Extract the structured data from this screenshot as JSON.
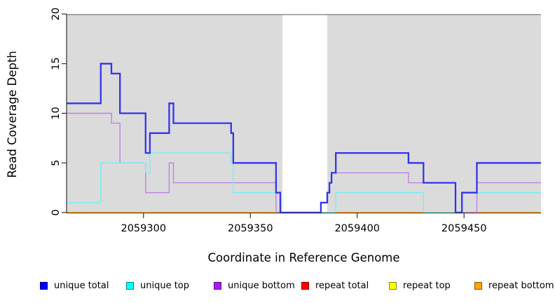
{
  "figure": {
    "background": "#ffffff",
    "panel_background": "#dbdbdb",
    "mask_fill": "#ffffff",
    "axis_color": "#303030",
    "top_border_color": "#8f8f8f",
    "text_color": "#000000"
  },
  "chart_data": {
    "type": "line",
    "subtype": "step-after",
    "title": "",
    "xlabel": "Coordinate in Reference Genome",
    "ylabel": "Read Coverage Depth",
    "xlim": [
      2059264,
      2059486
    ],
    "ylim": [
      0,
      20
    ],
    "x_ticks": [
      2059300,
      2059350,
      2059400,
      2059450
    ],
    "y_ticks": [
      0,
      5,
      10,
      15,
      20
    ],
    "grid": false,
    "legend_position": "bottom",
    "mask_region": {
      "start": 2059365,
      "end": 2059386
    },
    "x_end": 2059486,
    "series": [
      {
        "name": "repeat total",
        "line_color": "#ff2222",
        "line_width": 1.4,
        "legend_fill": "#ff0000",
        "legend_border": "#8b0000",
        "points": [
          [
            2059264,
            0
          ]
        ]
      },
      {
        "name": "repeat top",
        "line_color": "#ffff33",
        "line_width": 1.4,
        "legend_fill": "#ffff00",
        "legend_border": "#8b8b00",
        "points": [
          [
            2059264,
            0
          ]
        ]
      },
      {
        "name": "repeat bottom",
        "line_color": "#ffa41f",
        "line_width": 1.8,
        "legend_fill": "#ffa500",
        "legend_border": "#8b5a00",
        "points": [
          [
            2059264,
            0
          ]
        ]
      },
      {
        "name": "unique bottom",
        "line_color": "#be82e8",
        "line_width": 1.4,
        "legend_fill": "#a020f0",
        "legend_border": "#5a0d8a",
        "points": [
          [
            2059264,
            10
          ],
          [
            2059285,
            9
          ],
          [
            2059289,
            5
          ],
          [
            2059301,
            2
          ],
          [
            2059312,
            5
          ],
          [
            2059314,
            3
          ],
          [
            2059362,
            0
          ],
          [
            2059383,
            1
          ],
          [
            2059386,
            2
          ],
          [
            2059387,
            3
          ],
          [
            2059388,
            4
          ],
          [
            2059424,
            3
          ],
          [
            2059446,
            0
          ],
          [
            2059456,
            3
          ]
        ]
      },
      {
        "name": "unique top",
        "line_color": "#6ff2f5",
        "line_width": 1.4,
        "legend_fill": "#00ffff",
        "legend_border": "#008b8b",
        "points": [
          [
            2059264,
            1
          ],
          [
            2059280,
            5
          ],
          [
            2059301,
            4
          ],
          [
            2059303,
            6
          ],
          [
            2059341,
            5
          ],
          [
            2059342,
            2
          ],
          [
            2059364,
            0
          ],
          [
            2059390,
            2
          ],
          [
            2059431,
            0
          ],
          [
            2059449,
            2
          ]
        ]
      },
      {
        "name": "unique total",
        "line_color": "#3434eb",
        "line_width": 2.3,
        "legend_fill": "#0000ff",
        "legend_border": "#000080",
        "points": [
          [
            2059264,
            11
          ],
          [
            2059280,
            15
          ],
          [
            2059285,
            14
          ],
          [
            2059289,
            10
          ],
          [
            2059301,
            6
          ],
          [
            2059303,
            8
          ],
          [
            2059312,
            11
          ],
          [
            2059314,
            9
          ],
          [
            2059341,
            8
          ],
          [
            2059342,
            5
          ],
          [
            2059362,
            2
          ],
          [
            2059364,
            0
          ],
          [
            2059383,
            1
          ],
          [
            2059386,
            2
          ],
          [
            2059387,
            3
          ],
          [
            2059388,
            4
          ],
          [
            2059390,
            6
          ],
          [
            2059424,
            5
          ],
          [
            2059431,
            3
          ],
          [
            2059446,
            0
          ],
          [
            2059449,
            2
          ],
          [
            2059456,
            5
          ]
        ]
      }
    ],
    "legend_order": [
      "unique total",
      "unique top",
      "unique bottom",
      "repeat total",
      "repeat top",
      "repeat bottom"
    ]
  }
}
